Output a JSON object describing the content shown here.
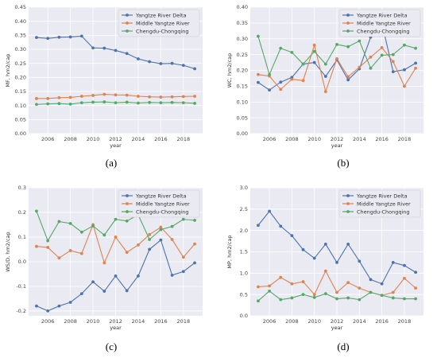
{
  "colors": {
    "blue": "#4c72b0",
    "orange": "#dd8452",
    "green": "#55a868",
    "plot_bg": "#eaeaf2",
    "grid": "#ffffff"
  },
  "chart_data": [
    {
      "type": "line",
      "panel_label": "(a)",
      "xlabel": "year",
      "ylabel": "MF, hm2/cap",
      "x": [
        2005,
        2006,
        2007,
        2008,
        2009,
        2010,
        2011,
        2012,
        2013,
        2014,
        2015,
        2016,
        2017,
        2018,
        2019
      ],
      "xticks": [
        "2006",
        "2008",
        "2010",
        "2012",
        "2014",
        "2016",
        "2018"
      ],
      "ylim": [
        0,
        0.45
      ],
      "yticks": [
        "0.00",
        "0.05",
        "0.10",
        "0.15",
        "0.20",
        "0.25",
        "0.30",
        "0.35",
        "0.40",
        "0.45"
      ],
      "grid": true,
      "legend_position": "top-right",
      "series": [
        {
          "name": "Yangtze River Delta",
          "color": "#4c72b0",
          "values": [
            0.342,
            0.339,
            0.343,
            0.344,
            0.347,
            0.305,
            0.304,
            0.296,
            0.285,
            0.266,
            0.256,
            0.249,
            0.25,
            0.243,
            0.231
          ]
        },
        {
          "name": "Middle Yangtze River",
          "color": "#dd8452",
          "values": [
            0.125,
            0.125,
            0.128,
            0.129,
            0.133,
            0.136,
            0.14,
            0.138,
            0.137,
            0.133,
            0.131,
            0.13,
            0.131,
            0.132,
            0.133
          ]
        },
        {
          "name": "Chengdu-Chongqing",
          "color": "#55a868",
          "values": [
            0.104,
            0.106,
            0.107,
            0.105,
            0.11,
            0.112,
            0.113,
            0.11,
            0.112,
            0.109,
            0.111,
            0.11,
            0.111,
            0.11,
            0.108
          ]
        }
      ]
    },
    {
      "type": "line",
      "panel_label": "(b)",
      "xlabel": "year",
      "ylabel": "WC, hm2/cap",
      "x": [
        2005,
        2006,
        2007,
        2008,
        2009,
        2010,
        2011,
        2012,
        2013,
        2014,
        2015,
        2016,
        2017,
        2018,
        2019
      ],
      "xticks": [
        "2006",
        "2008",
        "2010",
        "2012",
        "2014",
        "2016",
        "2018"
      ],
      "ylim": [
        0,
        0.4
      ],
      "yticks": [
        "0.00",
        "0.05",
        "0.10",
        "0.15",
        "0.20",
        "0.25",
        "0.30",
        "0.35",
        "0.40"
      ],
      "grid": true,
      "legend_position": "top-right",
      "series": [
        {
          "name": "Yangtze River Delta",
          "color": "#4c72b0",
          "values": [
            0.162,
            0.138,
            0.163,
            0.178,
            0.22,
            0.225,
            0.181,
            0.233,
            0.17,
            0.205,
            0.305,
            0.35,
            0.196,
            0.202,
            0.223
          ]
        },
        {
          "name": "Middle Yangtze River",
          "color": "#dd8452",
          "values": [
            0.187,
            0.182,
            0.14,
            0.172,
            0.168,
            0.28,
            0.133,
            0.237,
            0.18,
            0.21,
            0.242,
            0.272,
            0.228,
            0.15,
            0.207
          ]
        },
        {
          "name": "Chengdu-Chongqing",
          "color": "#55a868",
          "values": [
            0.308,
            0.187,
            0.27,
            0.257,
            0.22,
            0.26,
            0.22,
            0.282,
            0.275,
            0.293,
            0.207,
            0.248,
            0.25,
            0.28,
            0.27
          ]
        }
      ]
    },
    {
      "type": "line",
      "panel_label": "(c)",
      "xlabel": "year",
      "ylabel": "WS/D, hm2/cap",
      "x": [
        2005,
        2006,
        2007,
        2008,
        2009,
        2010,
        2011,
        2012,
        2013,
        2014,
        2015,
        2016,
        2017,
        2018,
        2019
      ],
      "xticks": [
        "2006",
        "2008",
        "2010",
        "2012",
        "2014",
        "2016",
        "2018"
      ],
      "ylim": [
        -0.22,
        0.3
      ],
      "yticks": [
        "-0.2",
        "-0.1",
        "0.0",
        "0.1",
        "0.2",
        "0.3"
      ],
      "grid": true,
      "legend_position": "top-right",
      "series": [
        {
          "name": "Yangtze River Delta",
          "color": "#4c72b0",
          "values": [
            -0.18,
            -0.2,
            -0.18,
            -0.165,
            -0.13,
            -0.082,
            -0.12,
            -0.058,
            -0.118,
            -0.058,
            0.05,
            0.088,
            -0.055,
            -0.04,
            -0.005
          ]
        },
        {
          "name": "Middle Yangtze River",
          "color": "#dd8452",
          "values": [
            0.062,
            0.058,
            0.015,
            0.045,
            0.033,
            0.15,
            -0.005,
            0.1,
            0.038,
            0.068,
            0.11,
            0.14,
            0.09,
            0.018,
            0.072
          ]
        },
        {
          "name": "Chengdu-Chongqing",
          "color": "#55a868",
          "values": [
            0.205,
            0.085,
            0.163,
            0.155,
            0.12,
            0.145,
            0.108,
            0.172,
            0.165,
            0.19,
            0.09,
            0.13,
            0.143,
            0.172,
            0.168
          ]
        }
      ]
    },
    {
      "type": "line",
      "panel_label": "(d)",
      "xlabel": "year",
      "ylabel": "MP, hm2/cap",
      "x": [
        2005,
        2006,
        2007,
        2008,
        2009,
        2010,
        2011,
        2012,
        2013,
        2014,
        2015,
        2016,
        2017,
        2018,
        2019
      ],
      "xticks": [
        "2006",
        "2008",
        "2010",
        "2012",
        "2014",
        "2016",
        "2018"
      ],
      "ylim": [
        0,
        3.0
      ],
      "yticks": [
        "0.0",
        "0.5",
        "1.0",
        "1.5",
        "2.0",
        "2.5",
        "3.0"
      ],
      "grid": true,
      "legend_position": "top-right",
      "series": [
        {
          "name": "Yangtze River Delta",
          "color": "#4c72b0",
          "values": [
            2.12,
            2.45,
            2.1,
            1.88,
            1.55,
            1.35,
            1.68,
            1.25,
            1.68,
            1.28,
            0.85,
            0.75,
            1.25,
            1.18,
            1.02
          ]
        },
        {
          "name": "Middle Yangtze River",
          "color": "#dd8452",
          "values": [
            0.68,
            0.7,
            0.9,
            0.75,
            0.8,
            0.5,
            1.05,
            0.55,
            0.78,
            0.65,
            0.55,
            0.48,
            0.55,
            0.88,
            0.65
          ]
        },
        {
          "name": "Chengdu-Chongqing",
          "color": "#55a868",
          "values": [
            0.35,
            0.58,
            0.38,
            0.42,
            0.5,
            0.43,
            0.52,
            0.4,
            0.42,
            0.38,
            0.55,
            0.48,
            0.42,
            0.4,
            0.4
          ]
        }
      ]
    }
  ]
}
